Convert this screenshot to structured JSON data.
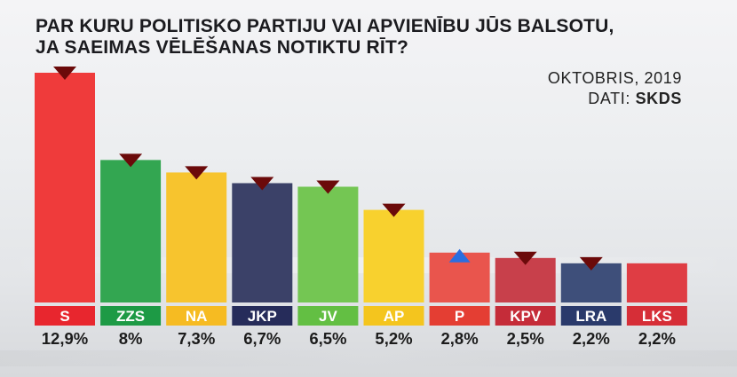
{
  "title_lines": [
    "PAR KURU POLITISKO PARTIJU VAI APVIENĪBU JŪS BALSOTU,",
    "JA SAEIMAS VĒLĒŠANAS NOTIKTU RĪT?"
  ],
  "date": "OKTOBRIS, 2019",
  "source_prefix": "DATI:",
  "source_name": "SKDS",
  "chart_data": {
    "type": "bar",
    "title": "PAR KURU POLITISKO PARTIJU VAI APVIENĪBU JŪS BALSOTU, JA SAEIMAS VĒLĒŠANAS NOTIKTU RĪT?",
    "categories": [
      "S",
      "ZZS",
      "NA",
      "JKP",
      "JV",
      "AP",
      "P",
      "KPV",
      "LRA",
      "LKS"
    ],
    "values": [
      12.9,
      8,
      7.3,
      6.7,
      6.5,
      5.2,
      2.8,
      2.5,
      2.2,
      2.2
    ],
    "value_labels": [
      "12,9%",
      "8%",
      "7,3%",
      "6,7%",
      "6,5%",
      "5,2%",
      "2,8%",
      "2,5%",
      "2,2%",
      "2,2%"
    ],
    "trend": [
      "down",
      "down",
      "down",
      "down",
      "down",
      "down",
      "up",
      "down",
      "down",
      "none"
    ],
    "colors": [
      "#ef3b3b",
      "#33a651",
      "#f7c42e",
      "#3b4168",
      "#74c653",
      "#f8d12e",
      "#e9554d",
      "#c8404b",
      "#3e4f7a",
      "#df3d44"
    ],
    "label_colors": [
      "#e8262e",
      "#1d9a45",
      "#f6bb22",
      "#262c5a",
      "#63bf43",
      "#f4c51e",
      "#e43e33",
      "#c52c39",
      "#2a3a6b",
      "#d62e37"
    ],
    "trend_colors": {
      "down": "#6b0a0a",
      "up": "#2a6ee0"
    },
    "ylim": [
      0,
      13.5
    ]
  }
}
